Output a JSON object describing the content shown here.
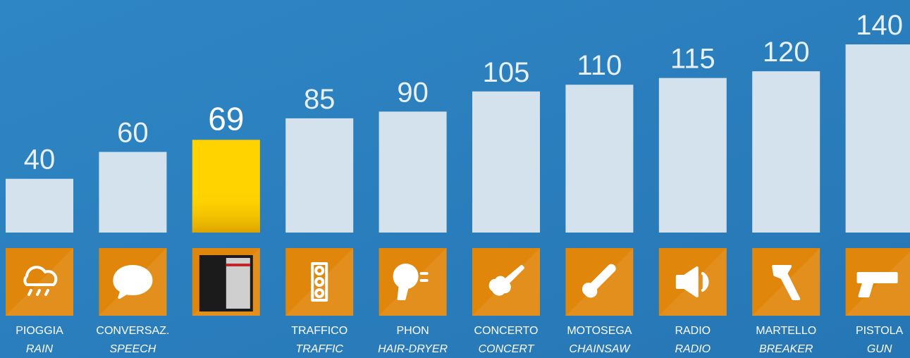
{
  "chart_data": {
    "type": "bar",
    "categories": [
      "PIOGGIA",
      "CONVERSAZ.",
      null,
      "TRAFFICO",
      "PHON",
      "CONCERTO",
      "MOTOSEGA",
      "RADIO",
      "MARTELLO",
      "PISTOLA"
    ],
    "sublabels": [
      "RAIN",
      "SPEECH",
      null,
      "TRAFFIC",
      "HAIR-DRYER",
      "CONCERT",
      "CHAINSAW",
      "RADIO",
      "BREAKER",
      "GUN"
    ],
    "values": [
      40,
      60,
      69,
      85,
      90,
      105,
      110,
      115,
      120,
      140
    ],
    "colors": [
      "#d4e2ed",
      "#d4e2ed",
      "#ffd300",
      "#d4e2ed",
      "#d4e2ed",
      "#d4e2ed",
      "#d4e2ed",
      "#d4e2ed",
      "#d4e2ed",
      "#d4e2ed"
    ],
    "icon_color": "#e0860a"
  }
}
